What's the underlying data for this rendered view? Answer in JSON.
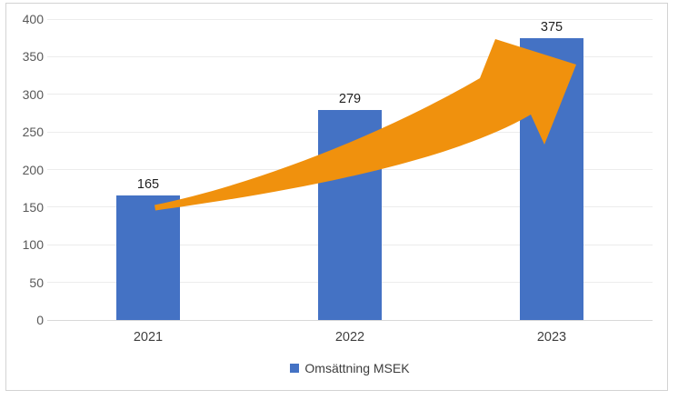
{
  "window": {
    "background": "#FFFFFF",
    "border_color": "#D3D3D3"
  },
  "chart_data": {
    "type": "bar",
    "title": "",
    "categories": [
      "2021",
      "2022",
      "2023"
    ],
    "series": [
      {
        "name": "Omsättning MSEK",
        "values": [
          165,
          279,
          375
        ],
        "color": "#4472C4"
      }
    ],
    "xlabel": "",
    "ylabel": "",
    "ylim": [
      0,
      400
    ],
    "ytick_step": 50,
    "yticks": [
      0,
      50,
      100,
      150,
      200,
      250,
      300,
      350,
      400
    ],
    "grid": "horizontal",
    "data_labels_shown": true,
    "legend": {
      "position": "bottom",
      "label": "Omsättning MSEK",
      "marker_color": "#4472C4"
    },
    "annotations": [
      {
        "type": "block-arrow",
        "description": "curved upward growth arrow from top of 2021 bar to top of 2023 bar",
        "color": "#F0910D"
      }
    ]
  },
  "axis_style": {
    "tick_label_color": "#595959",
    "category_label_color": "#3F3F3F",
    "value_label_color": "#1F1F1F",
    "gridline_color": "#ECECEC",
    "baseline_color": "#D8D8D8"
  }
}
